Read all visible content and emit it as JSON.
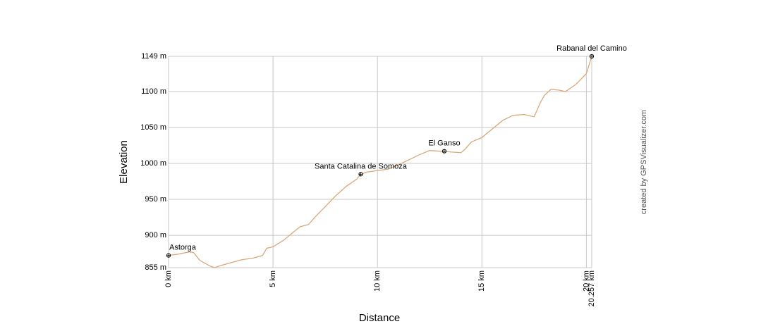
{
  "chart_data": {
    "type": "line",
    "x_label": "Distance",
    "y_label": "Elevation",
    "credit": "created by GPSVisualizer.com",
    "xlim": [
      0,
      20.257
    ],
    "ylim": [
      855,
      1149
    ],
    "xticks": [
      {
        "value": 0,
        "label": "0 km"
      },
      {
        "value": 5,
        "label": "5 km"
      },
      {
        "value": 10,
        "label": "10 km"
      },
      {
        "value": 15,
        "label": "15 km"
      },
      {
        "value": 20,
        "label": "20 km"
      },
      {
        "value": 20.257,
        "label": "20.257 km"
      }
    ],
    "yticks": [
      {
        "value": 855,
        "label": "855 m"
      },
      {
        "value": 900,
        "label": "900 m"
      },
      {
        "value": 950,
        "label": "950 m"
      },
      {
        "value": 1000,
        "label": "1000 m"
      },
      {
        "value": 1050,
        "label": "1050 m"
      },
      {
        "value": 1100,
        "label": "1100 m"
      },
      {
        "value": 1149,
        "label": "1149 m"
      }
    ],
    "grid": true,
    "series": [
      {
        "name": "Elevation",
        "color": "#d9a878",
        "x": [
          0,
          0.5,
          1.0,
          1.2,
          1.5,
          2.0,
          2.2,
          2.5,
          3.0,
          3.5,
          4.0,
          4.5,
          4.7,
          5.0,
          5.5,
          6.0,
          6.3,
          6.7,
          7.0,
          7.5,
          8.0,
          8.5,
          9.0,
          9.2,
          9.5,
          10.0,
          10.5,
          11.0,
          11.5,
          12.0,
          12.5,
          13.0,
          13.2,
          13.5,
          14.0,
          14.2,
          14.5,
          15.0,
          15.5,
          16.0,
          16.5,
          17.0,
          17.5,
          17.8,
          18.0,
          18.3,
          18.7,
          19.0,
          19.5,
          20.0,
          20.257
        ],
        "values": [
          872,
          874,
          877,
          876,
          865,
          857,
          855,
          858,
          862,
          866,
          868,
          872,
          882,
          884,
          893,
          905,
          912,
          915,
          925,
          940,
          955,
          968,
          978,
          985,
          988,
          990,
          992,
          998,
          1005,
          1012,
          1018,
          1017,
          1017,
          1016,
          1015,
          1020,
          1030,
          1036,
          1048,
          1060,
          1067,
          1068,
          1065,
          1085,
          1095,
          1103,
          1102,
          1100,
          1110,
          1125,
          1149
        ]
      }
    ],
    "waypoints": [
      {
        "name": "Astorga",
        "x": 0,
        "y": 872
      },
      {
        "name": "Santa Catalina de Somoza",
        "x": 9.2,
        "y": 985
      },
      {
        "name": "El Ganso",
        "x": 13.2,
        "y": 1017
      },
      {
        "name": "Rabanal del Camino",
        "x": 20.257,
        "y": 1149
      }
    ]
  }
}
